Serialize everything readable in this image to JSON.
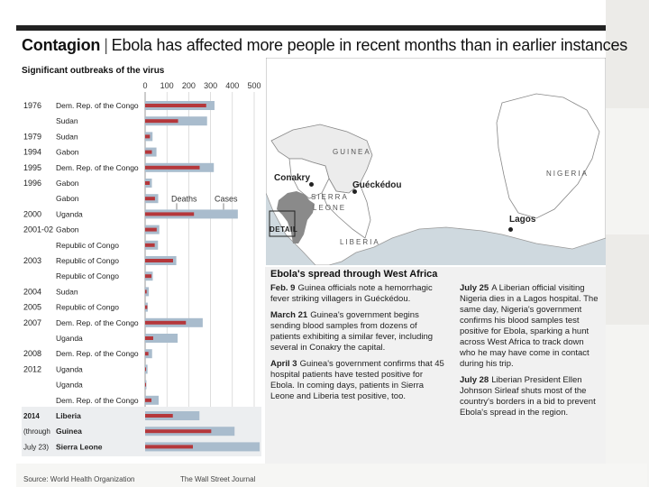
{
  "header": {
    "title_bold": "Contagion",
    "separator": "|",
    "title_rest": "Ebola has affected more people in recent months than in earlier instances"
  },
  "chart_data": {
    "type": "bar",
    "orientation": "horizontal",
    "title": "Significant outbreaks of the virus",
    "x_ticks": [
      0,
      100,
      200,
      300,
      400,
      500
    ],
    "xlim": [
      0,
      500
    ],
    "series_labels": {
      "deaths": "Deaths",
      "cases": "Cases"
    },
    "colors": {
      "deaths": "#b5373b",
      "cases": "#a9bccd"
    },
    "rows": [
      {
        "year": "1976",
        "country": "Dem. Rep. of the Congo",
        "deaths": 280,
        "cases": 318
      },
      {
        "year": "",
        "country": "Sudan",
        "deaths": 151,
        "cases": 284
      },
      {
        "year": "1979",
        "country": "Sudan",
        "deaths": 22,
        "cases": 34
      },
      {
        "year": "1994",
        "country": "Gabon",
        "deaths": 31,
        "cases": 52
      },
      {
        "year": "1995",
        "country": "Dem. Rep. of the Congo",
        "deaths": 250,
        "cases": 315
      },
      {
        "year": "1996",
        "country": "Gabon",
        "deaths": 21,
        "cases": 31
      },
      {
        "year": "",
        "country": "Gabon",
        "deaths": 45,
        "cases": 60
      },
      {
        "year": "2000",
        "country": "Uganda",
        "deaths": 224,
        "cases": 425
      },
      {
        "year": "2001-02",
        "country": "Gabon",
        "deaths": 53,
        "cases": 65
      },
      {
        "year": "",
        "country": "Republic of Congo",
        "deaths": 44,
        "cases": 59
      },
      {
        "year": "2003",
        "country": "Republic of Congo",
        "deaths": 128,
        "cases": 143
      },
      {
        "year": "",
        "country": "Republic of Congo",
        "deaths": 29,
        "cases": 35
      },
      {
        "year": "2004",
        "country": "Sudan",
        "deaths": 7,
        "cases": 17
      },
      {
        "year": "2005",
        "country": "Republic of Congo",
        "deaths": 10,
        "cases": 12
      },
      {
        "year": "2007",
        "country": "Dem. Rep. of the Congo",
        "deaths": 187,
        "cases": 264
      },
      {
        "year": "",
        "country": "Uganda",
        "deaths": 37,
        "cases": 149
      },
      {
        "year": "2008",
        "country": "Dem. Rep. of the Congo",
        "deaths": 15,
        "cases": 32
      },
      {
        "year": "2012",
        "country": "Uganda",
        "deaths": 4,
        "cases": 11
      },
      {
        "year": "",
        "country": "Uganda",
        "deaths": 4,
        "cases": 6
      },
      {
        "year": "",
        "country": "Dem. Rep. of the Congo",
        "deaths": 29,
        "cases": 62
      },
      {
        "year": "2014",
        "country": "Liberia",
        "deaths": 127,
        "cases": 249
      },
      {
        "year": "(through",
        "country": "Guinea",
        "deaths": 303,
        "cases": 410
      },
      {
        "year": "July 23)",
        "country": "Sierra Leone",
        "deaths": 219,
        "cases": 525
      }
    ],
    "source": "Source: World Health Organization",
    "credit": "The Wall Street Journal"
  },
  "map": {
    "countries": {
      "guinea": "GUINEA",
      "sierra_leone_1": "SIERRA",
      "sierra_leone_2": "LEONE",
      "liberia": "LIBERIA",
      "nigeria": "NIGERIA"
    },
    "cities": {
      "conakry": "Conakry",
      "gueckedou": "Guéckédou",
      "lagos": "Lagos"
    },
    "detail_label": "DETAIL",
    "colors": {
      "land": "#ffffff",
      "guinea": "#ececec",
      "water": "#cfd9df",
      "africa": "#8a8a8a",
      "border": "#888888"
    }
  },
  "timeline": {
    "title": "Ebola's spread through West Africa",
    "left": [
      {
        "date": "Feb. 9",
        "text": "Guinea officials note a hemorrhagic fever striking villagers in Guéckédou."
      },
      {
        "date": "March 21",
        "text": "Guinea's government begins sending blood samples from dozens of patients exhibiting a similar fever, including several in Conakry the capital."
      },
      {
        "date": "April 3",
        "text": "Guinea's government confirms that 45 hospital patients have tested positive for Ebola. In coming days, patients in Sierra Leone and Liberia test positive, too."
      }
    ],
    "right": [
      {
        "date": "July 25",
        "text": "A Liberian official visiting Nigeria dies in a Lagos hospital. The same day, Nigeria's government confirms his blood samples test positive for Ebola, sparking a hunt across West Africa to track down who he may have come in contact during his trip."
      },
      {
        "date": "July 28",
        "text": "Liberian President Ellen Johnson Sirleaf shuts most of the country's borders in a bid to prevent Ebola's spread in the region."
      }
    ]
  }
}
